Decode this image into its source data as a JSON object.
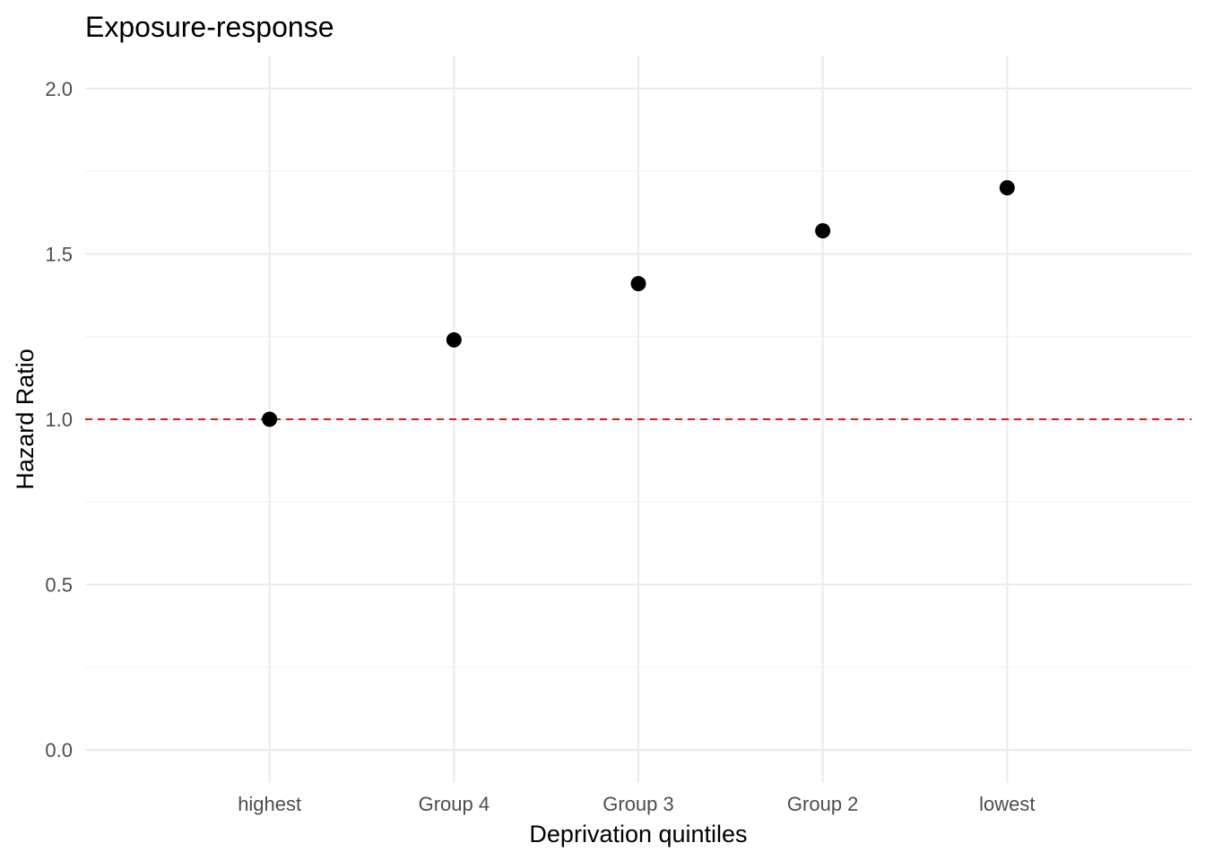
{
  "chart_data": {
    "type": "scatter",
    "title": "Exposure-response",
    "xlabel": "Deprivation quintiles",
    "ylabel": "Hazard Ratio",
    "categories": [
      "highest",
      "Group 4",
      "Group 3",
      "Group 2",
      "lowest"
    ],
    "values": [
      1.0,
      1.24,
      1.41,
      1.57,
      1.7
    ],
    "ylim": [
      -0.1,
      2.1
    ],
    "yticks": [
      0.0,
      0.5,
      1.0,
      1.5,
      2.0
    ],
    "ytick_labels": [
      "0.0",
      "0.5",
      "1.0",
      "1.5",
      "2.0"
    ],
    "reference_line": {
      "y": 1.0,
      "style": "dashed",
      "color": "#e41a1c"
    },
    "point_color": "#000000",
    "grid": true,
    "legend": "none"
  }
}
